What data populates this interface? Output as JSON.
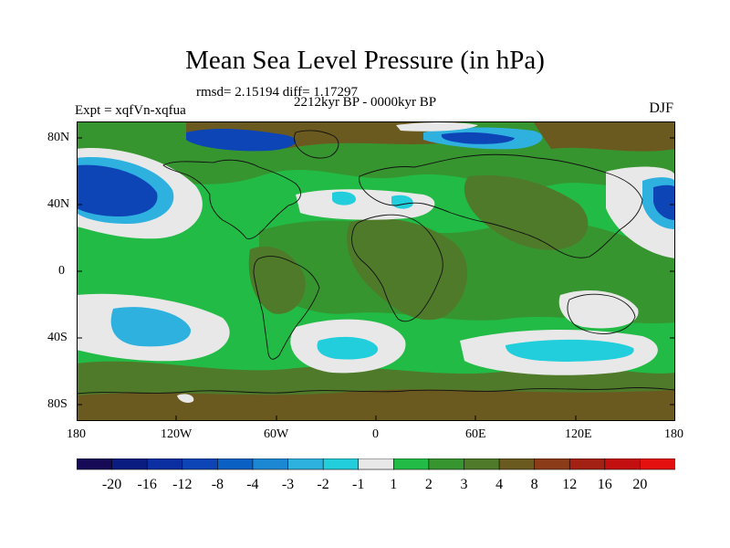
{
  "title": "Mean Sea Level Pressure (in hPa)",
  "stats": "rmsd= 2.15194 diff= 1.17297",
  "experiment": "Expt = xqfVn-xqfua",
  "period": "2212kyr BP - 0000kyr BP",
  "season": "DJF",
  "lat_ticks": [
    "80N",
    "40N",
    "0",
    "40S",
    "80S"
  ],
  "lon_ticks": [
    "180",
    "120W",
    "60W",
    "0",
    "60E",
    "120E",
    "180"
  ],
  "colorbar": {
    "labels": [
      "-20",
      "-16",
      "-12",
      "-8",
      "-4",
      "-3",
      "-2",
      "-1",
      "1",
      "2",
      "3",
      "4",
      "8",
      "12",
      "16",
      "20"
    ],
    "colors": [
      "#160a57",
      "#0a1c80",
      "#0b2fa0",
      "#0d45b7",
      "#0b60c4",
      "#1c88d4",
      "#2fb1e0",
      "#22cddc",
      "#e8e8e8",
      "#22bb45",
      "#379530",
      "#4f7a2a",
      "#6b5a1f",
      "#8c3b18",
      "#a22014",
      "#c30f0f",
      "#e41010"
    ]
  },
  "colors": {
    "background": "#22bb45",
    "dark_green": "#379530",
    "olive": "#4f7a2a",
    "brown": "#6b5a1f",
    "white": "#e8e8e8",
    "blue": "#0d45b7",
    "cyan": "#22cddc",
    "coast": "#111111"
  }
}
